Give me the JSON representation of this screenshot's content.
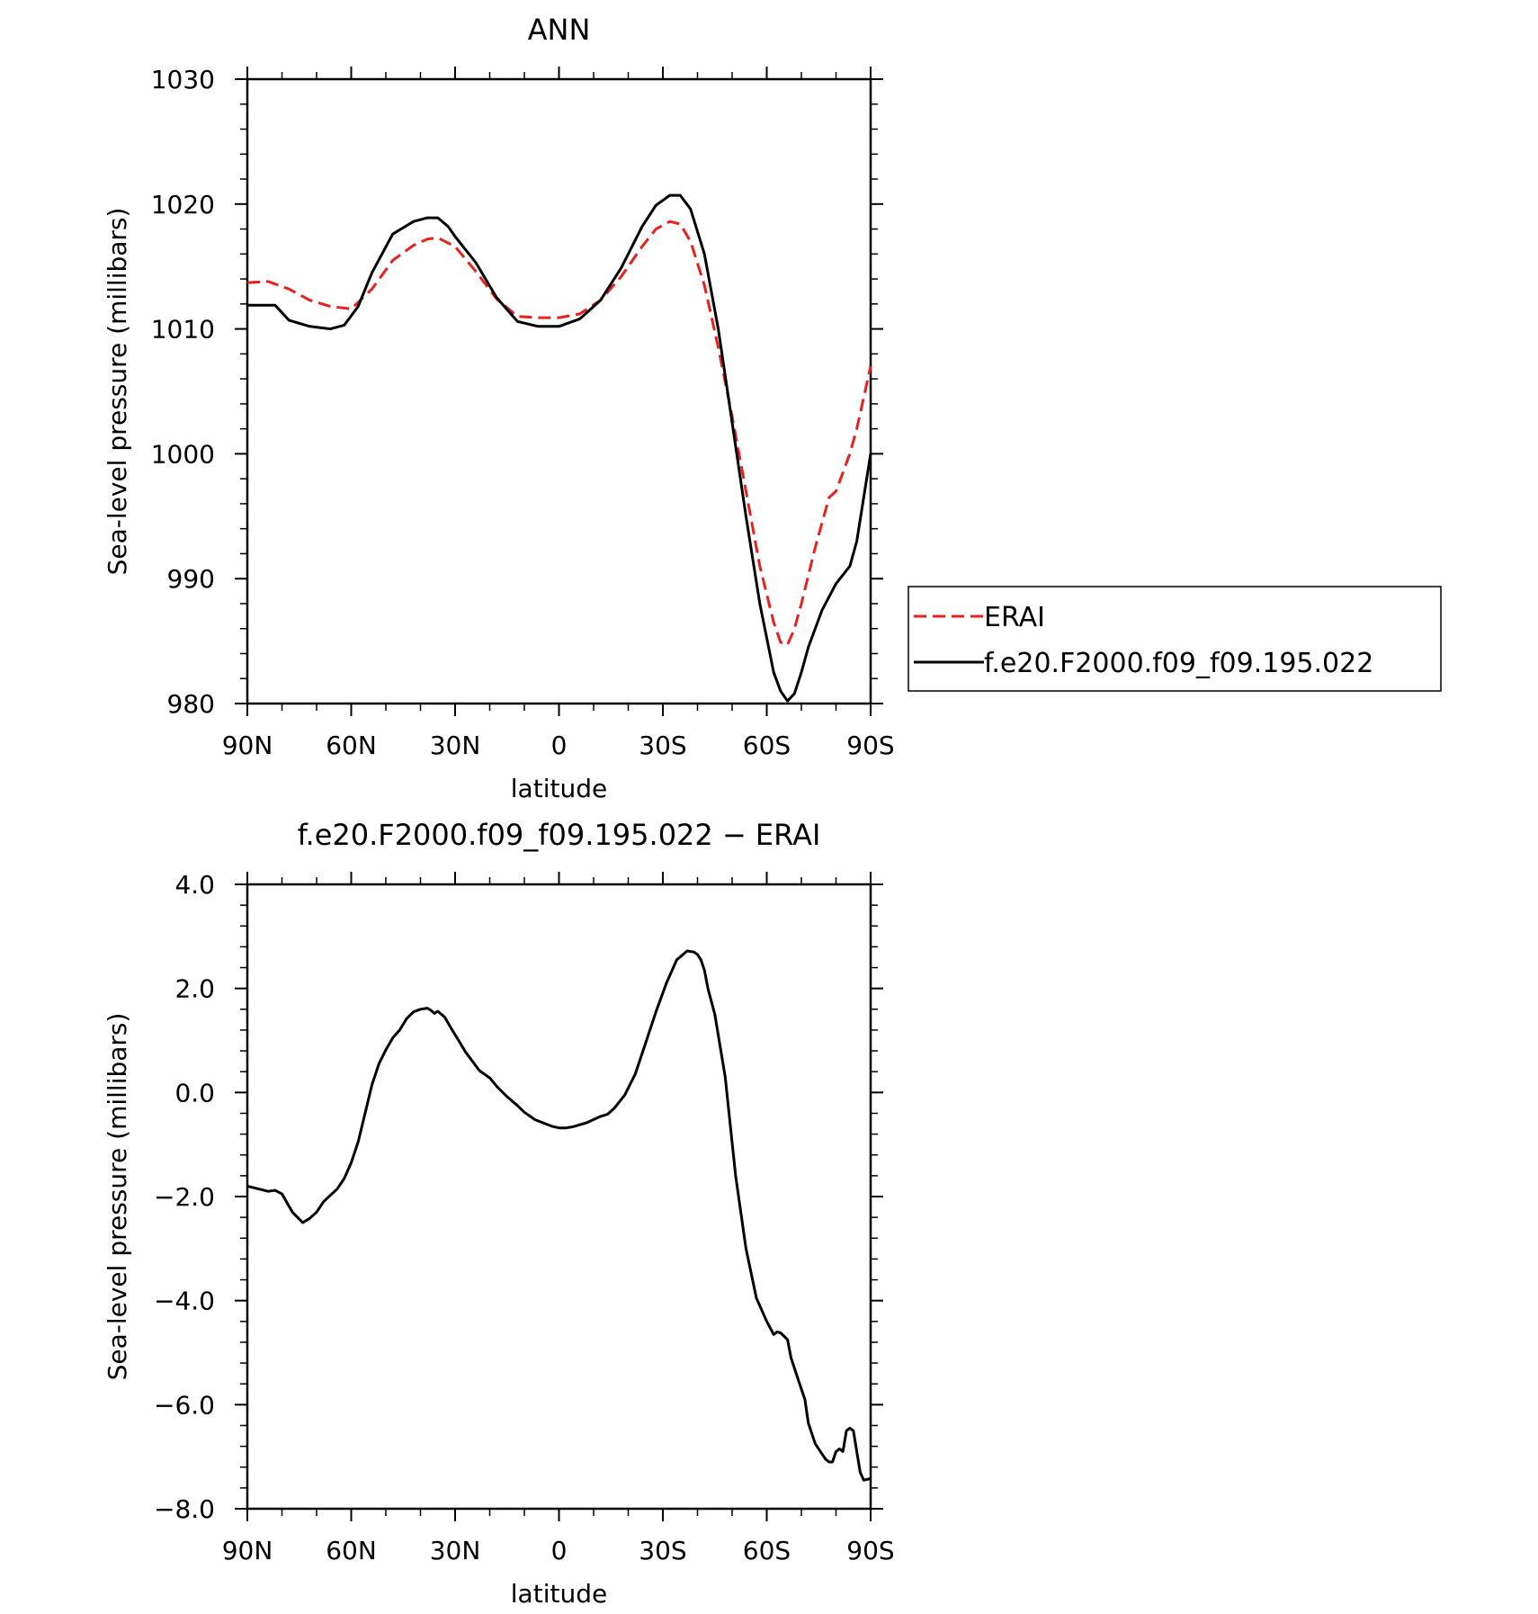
{
  "chart_data": [
    {
      "type": "line",
      "title": "ANN",
      "xlabel": "latitude",
      "ylabel": "Sea-level pressure (millibars)",
      "xlim": [
        90,
        -90
      ],
      "ylim": [
        980,
        1030
      ],
      "x_ticks": [
        90,
        60,
        30,
        0,
        -30,
        -60,
        -90
      ],
      "x_tick_labels": [
        "90N",
        "60N",
        "30N",
        "0",
        "30S",
        "60S",
        "90S"
      ],
      "y_ticks": [
        980,
        990,
        1000,
        1010,
        1020,
        1030
      ],
      "y_tick_labels": [
        "980",
        "990",
        "1000",
        "1010",
        "1020",
        "1030"
      ],
      "grid": false,
      "legend": "right",
      "series": [
        {
          "name": "ERAI",
          "color": "#e8201e",
          "dash": "dashed",
          "x": [
            90,
            84,
            78,
            72,
            66,
            60,
            54,
            48,
            42,
            38,
            35,
            30,
            24,
            18,
            12,
            6,
            0,
            -6,
            -12,
            -18,
            -24,
            -28,
            -32,
            -35,
            -38,
            -42,
            -46,
            -50,
            -54,
            -58,
            -62,
            -64,
            -66,
            -68,
            -70,
            -74,
            -76,
            -78,
            -80,
            -82,
            -84,
            -86,
            -88,
            -90
          ],
          "values": [
            1013.7,
            1013.8,
            1013.2,
            1012.3,
            1011.8,
            1011.6,
            1013.2,
            1015.5,
            1016.7,
            1017.2,
            1017.3,
            1016.6,
            1014.6,
            1012.4,
            1011.0,
            1010.9,
            1010.9,
            1011.2,
            1012.3,
            1014.2,
            1016.6,
            1018.0,
            1018.6,
            1018.4,
            1017.0,
            1013.5,
            1008.5,
            1003.0,
            997.0,
            991.0,
            986.5,
            984.9,
            984.7,
            986.0,
            988.0,
            992.5,
            994.5,
            996.5,
            997.0,
            998.5,
            1000.0,
            1002.0,
            1004.5,
            1007.0
          ]
        },
        {
          "name": "f.e20.F2000.f09_f09.195.022",
          "color": "#000000",
          "dash": "solid",
          "x": [
            90,
            84,
            82,
            78,
            72,
            66,
            62,
            58,
            54,
            48,
            42,
            38,
            35,
            32,
            30,
            24,
            18,
            12,
            6,
            0,
            -6,
            -12,
            -18,
            -24,
            -28,
            -32,
            -35,
            -38,
            -42,
            -46,
            -50,
            -54,
            -58,
            -62,
            -64,
            -66,
            -68,
            -70,
            -72,
            -76,
            -80,
            -84,
            -86,
            -88,
            -90
          ],
          "values": [
            1011.9,
            1011.9,
            1011.9,
            1010.7,
            1010.2,
            1010.0,
            1010.3,
            1011.8,
            1014.5,
            1017.6,
            1018.6,
            1018.9,
            1018.9,
            1018.2,
            1017.4,
            1015.3,
            1012.5,
            1010.6,
            1010.2,
            1010.2,
            1010.8,
            1012.3,
            1014.9,
            1018.2,
            1019.9,
            1020.7,
            1020.7,
            1019.6,
            1016.0,
            1010.0,
            1002.5,
            995.0,
            988.0,
            982.5,
            981.0,
            980.2,
            980.8,
            982.5,
            984.5,
            987.5,
            989.6,
            991.0,
            993.0,
            996.5,
            1000.0
          ]
        }
      ]
    },
    {
      "type": "line",
      "title": "f.e20.F2000.f09_f09.195.022 − ERAI",
      "xlabel": "latitude",
      "ylabel": "Sea-level pressure (millibars)",
      "xlim": [
        90,
        -90
      ],
      "ylim": [
        -8.0,
        4.0
      ],
      "x_ticks": [
        90,
        60,
        30,
        0,
        -30,
        -60,
        -90
      ],
      "x_tick_labels": [
        "90N",
        "60N",
        "30N",
        "0",
        "30S",
        "60S",
        "90S"
      ],
      "y_ticks": [
        -8.0,
        -6.0,
        -4.0,
        -2.0,
        0.0,
        2.0,
        4.0
      ],
      "y_tick_labels": [
        "−8.0",
        "−6.0",
        "−4.0",
        "−2.0",
        "0.0",
        "2.0",
        "4.0"
      ],
      "grid": false,
      "series": [
        {
          "color": "#000000",
          "dash": "solid",
          "x": [
            90,
            87,
            84,
            82,
            80,
            77,
            74,
            72,
            70,
            68,
            64,
            62,
            60,
            58,
            56,
            54,
            52,
            50,
            48,
            46,
            44,
            42,
            40,
            38,
            37,
            36,
            35,
            33,
            31,
            29,
            27,
            25,
            23,
            20,
            18,
            15,
            12,
            10,
            7,
            4,
            2,
            0,
            -2,
            -4,
            -6,
            -8,
            -10,
            -12,
            -14,
            -16,
            -19,
            -22,
            -25,
            -28,
            -31,
            -34,
            -37,
            -39,
            -40,
            -41,
            -42,
            -43,
            -45,
            -48,
            -51,
            -54,
            -57,
            -60,
            -62,
            -63,
            -64,
            -66,
            -67,
            -69,
            -71,
            -72,
            -74,
            -76,
            -77,
            -78,
            -79,
            -80,
            -81,
            -82,
            -83,
            -84,
            -85,
            -86,
            -87,
            -88,
            -90
          ],
          "values": [
            -1.8,
            -1.85,
            -1.9,
            -1.88,
            -1.95,
            -2.3,
            -2.5,
            -2.42,
            -2.3,
            -2.1,
            -1.85,
            -1.65,
            -1.35,
            -0.95,
            -0.4,
            0.15,
            0.55,
            0.82,
            1.05,
            1.2,
            1.42,
            1.55,
            1.6,
            1.62,
            1.58,
            1.52,
            1.56,
            1.45,
            1.22,
            1.0,
            0.78,
            0.6,
            0.42,
            0.28,
            0.12,
            -0.08,
            -0.25,
            -0.38,
            -0.52,
            -0.6,
            -0.65,
            -0.68,
            -0.68,
            -0.66,
            -0.62,
            -0.58,
            -0.52,
            -0.46,
            -0.42,
            -0.3,
            -0.05,
            0.35,
            0.95,
            1.55,
            2.1,
            2.55,
            2.72,
            2.7,
            2.65,
            2.55,
            2.35,
            2.0,
            1.5,
            0.3,
            -1.6,
            -3.0,
            -3.95,
            -4.4,
            -4.65,
            -4.6,
            -4.62,
            -4.75,
            -5.1,
            -5.5,
            -5.9,
            -6.35,
            -6.75,
            -6.95,
            -7.05,
            -7.1,
            -7.1,
            -6.9,
            -6.85,
            -6.9,
            -6.5,
            -6.45,
            -6.5,
            -6.9,
            -7.3,
            -7.45,
            -7.42
          ]
        }
      ]
    }
  ],
  "legend": {
    "entries": [
      "ERAI",
      "f.e20.F2000.f09_f09.195.022"
    ]
  }
}
